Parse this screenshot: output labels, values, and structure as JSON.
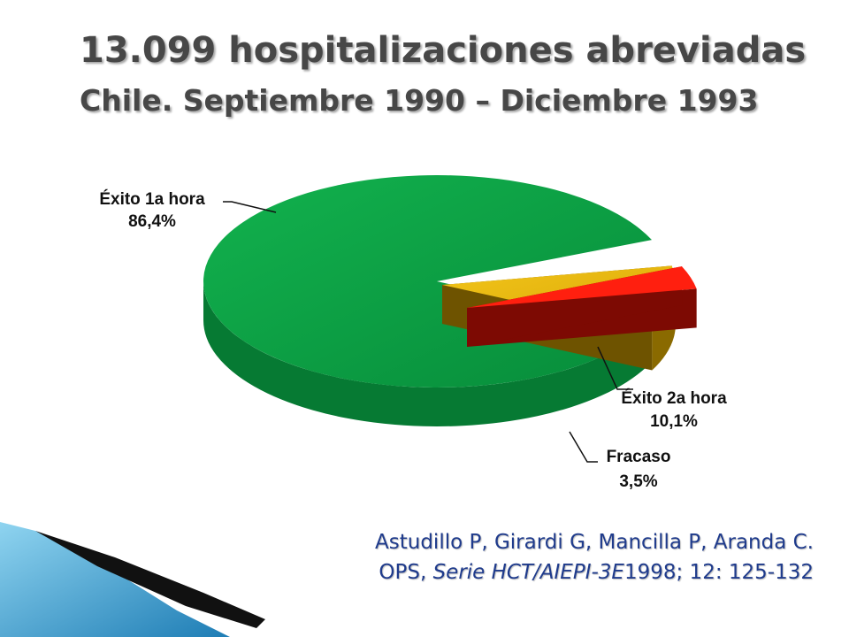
{
  "slide": {
    "title": "13.099 hospitalizaciones abreviadas",
    "subtitle": "Chile. Septiembre 1990 – Diciembre 1993",
    "citation": {
      "line1": "Astudillo P, Girardi G, Mancilla P, Aranda C.",
      "line2_prefix": "OPS, ",
      "line2_italic": "Serie HCT/AIEPI-3E",
      "line2_suffix": "1998; 12: 125-132"
    }
  },
  "chart_data": {
    "type": "pie",
    "title": "",
    "slices": [
      {
        "label": "Éxito 1a hora",
        "value": 86.4,
        "value_label": "86,4%",
        "color": "#0aa245"
      },
      {
        "label": "Éxito 2a hora",
        "value": 10.1,
        "value_label": "10,1%",
        "color": "#e8b80c"
      },
      {
        "label": "Fracaso",
        "value": 3.5,
        "value_label": "3,5%",
        "color": "#ff1f0f"
      }
    ],
    "legend": "none"
  },
  "colors": {
    "title": "#474747",
    "citation": "#1f3b8c",
    "corner_blue": "#4aaed8"
  }
}
